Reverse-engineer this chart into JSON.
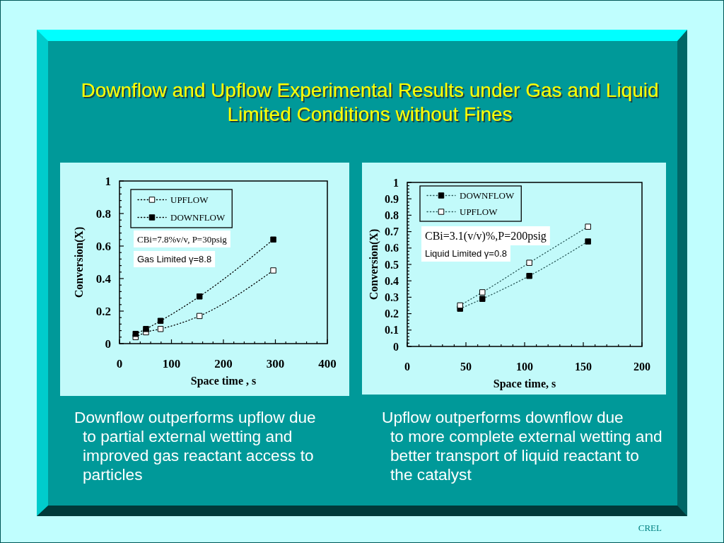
{
  "chart_data": [
    {
      "type": "other",
      "title": "Downflow and Upflow Experimental Results under Gas and Liquid Limited Conditions without Fines",
      "annotations": [
        "CREL"
      ]
    },
    {
      "type": "line",
      "xlabel": "Space time , s",
      "ylabel": "Conversion(X)",
      "x": [
        31,
        51,
        79,
        154,
        296
      ],
      "series": [
        {
          "name": "UPFLOW",
          "color": "#ffffff",
          "values": [
            0.04,
            0.07,
            0.09,
            0.17,
            0.45
          ]
        },
        {
          "name": "DOWNFLOW",
          "color": "#000000",
          "values": [
            0.06,
            0.09,
            0.14,
            0.29,
            0.64
          ]
        }
      ],
      "xlim": [
        0,
        400
      ],
      "ylim": [
        0,
        1
      ],
      "xticks": [
        0,
        {
          "value": 20,
          "label": null
        },
        {
          "value": 40,
          "label": null
        },
        {
          "value": 60,
          "label": null
        },
        {
          "value": 80,
          "label": null
        },
        100,
        {
          "value": 120,
          "label": null
        },
        {
          "value": 140,
          "label": null
        },
        {
          "value": 160,
          "label": null
        },
        {
          "value": 180,
          "label": null
        },
        200,
        {
          "value": 220,
          "label": null
        },
        {
          "value": 240,
          "label": null
        },
        {
          "value": 260,
          "label": null
        },
        {
          "value": 280,
          "label": null
        },
        300,
        {
          "value": 320,
          "label": null
        },
        {
          "value": 340,
          "label": null
        },
        {
          "value": 360,
          "label": null
        },
        {
          "value": 380,
          "label": null
        },
        400
      ],
      "yticks": [
        0,
        {
          "value": 0.04,
          "label": null
        },
        {
          "value": 0.08,
          "label": null
        },
        {
          "value": 0.12,
          "label": null
        },
        {
          "value": 0.16,
          "label": null
        },
        0.2,
        {
          "value": 0.24,
          "label": null
        },
        {
          "value": 0.28,
          "label": null
        },
        {
          "value": 0.32,
          "label": null
        },
        {
          "value": 0.36,
          "label": null
        },
        0.4,
        {
          "value": 0.44,
          "label": null
        },
        {
          "value": 0.48,
          "label": null
        },
        {
          "value": 0.52,
          "label": null
        },
        {
          "value": 0.56,
          "label": null
        },
        0.6,
        {
          "value": 0.64,
          "label": null
        },
        {
          "value": 0.68,
          "label": null
        },
        {
          "value": 0.72,
          "label": null
        },
        {
          "value": 0.76,
          "label": null
        },
        0.8,
        {
          "value": 0.84,
          "label": null
        },
        {
          "value": 0.88,
          "label": null
        },
        {
          "value": 0.92,
          "label": null
        },
        {
          "value": 0.96,
          "label": null
        },
        1
      ],
      "marker": "square",
      "line_style": "dotted",
      "legend": "top left",
      "annotations": [
        "CBi=7.8%v/v, P=30psig",
        "Gas Limited γ=8.8",
        "Downflow outperforms upflow due\nto partial external wetting and\nimproved gas reactant access to\nparticles"
      ]
    },
    {
      "type": "line",
      "xlabel": "Space time, s",
      "ylabel": "Conversion(X)",
      "x": [
        45,
        64,
        104,
        154
      ],
      "series": [
        {
          "name": "DOWNFLOW",
          "color": "#000000",
          "values": [
            0.23,
            0.29,
            0.43,
            0.64
          ]
        },
        {
          "name": "UPFLOW",
          "color": "#ffffff",
          "values": [
            0.25,
            0.33,
            0.51,
            0.73
          ]
        }
      ],
      "xlim": [
        0,
        200
      ],
      "ylim": [
        0,
        1
      ],
      "xticks": [
        0,
        {
          "value": 10,
          "label": null
        },
        {
          "value": 20,
          "label": null
        },
        {
          "value": 30,
          "label": null
        },
        {
          "value": 40,
          "label": null
        },
        50,
        {
          "value": 60,
          "label": null
        },
        {
          "value": 70,
          "label": null
        },
        {
          "value": 80,
          "label": null
        },
        {
          "value": 90,
          "label": null
        },
        100,
        {
          "value": 110,
          "label": null
        },
        {
          "value": 120,
          "label": null
        },
        {
          "value": 130,
          "label": null
        },
        {
          "value": 140,
          "label": null
        },
        150,
        {
          "value": 160,
          "label": null
        },
        {
          "value": 170,
          "label": null
        },
        {
          "value": 180,
          "label": null
        },
        {
          "value": 190,
          "label": null
        },
        200
      ],
      "yticks": [
        0,
        {
          "value": 0.02,
          "label": null
        },
        {
          "value": 0.04,
          "label": null
        },
        {
          "value": 0.06,
          "label": null
        },
        {
          "value": 0.08,
          "label": null
        },
        0.1,
        {
          "value": 0.12,
          "label": null
        },
        {
          "value": 0.14,
          "label": null
        },
        {
          "value": 0.16,
          "label": null
        },
        {
          "value": 0.18,
          "label": null
        },
        0.2,
        {
          "value": 0.22,
          "label": null
        },
        {
          "value": 0.24,
          "label": null
        },
        {
          "value": 0.26,
          "label": null
        },
        {
          "value": 0.28,
          "label": null
        },
        0.3,
        {
          "value": 0.32,
          "label": null
        },
        {
          "value": 0.34,
          "label": null
        },
        {
          "value": 0.36,
          "label": null
        },
        {
          "value": 0.38,
          "label": null
        },
        0.4,
        {
          "value": 0.42,
          "label": null
        },
        {
          "value": 0.44,
          "label": null
        },
        {
          "value": 0.46,
          "label": null
        },
        {
          "value": 0.48,
          "label": null
        },
        0.5,
        {
          "value": 0.52,
          "label": null
        },
        {
          "value": 0.54,
          "label": null
        },
        {
          "value": 0.56,
          "label": null
        },
        {
          "value": 0.58,
          "label": null
        },
        0.6,
        {
          "value": 0.62,
          "label": null
        },
        {
          "value": 0.64,
          "label": null
        },
        {
          "value": 0.66,
          "label": null
        },
        {
          "value": 0.68,
          "label": null
        },
        0.7,
        {
          "value": 0.72,
          "label": null
        },
        {
          "value": 0.74,
          "label": null
        },
        {
          "value": 0.76,
          "label": null
        },
        {
          "value": 0.78,
          "label": null
        },
        0.8,
        {
          "value": 0.82,
          "label": null
        },
        {
          "value": 0.84,
          "label": null
        },
        {
          "value": 0.86,
          "label": null
        },
        {
          "value": 0.88,
          "label": null
        },
        0.9,
        {
          "value": 0.92,
          "label": null
        },
        {
          "value": 0.94,
          "label": null
        },
        {
          "value": 0.96,
          "label": null
        },
        {
          "value": 0.98,
          "label": null
        },
        1
      ],
      "marker": "square",
      "line_style": "dotted",
      "legend": "top left",
      "annotations": [
        "CBi=3.1(v/v)%,P=200psig",
        "Liquid Limited γ=0.8",
        "Upflow outperforms downflow due\nto more complete external wetting and\nbetter transport of liquid reactant to\nthe catalyst"
      ]
    }
  ]
}
